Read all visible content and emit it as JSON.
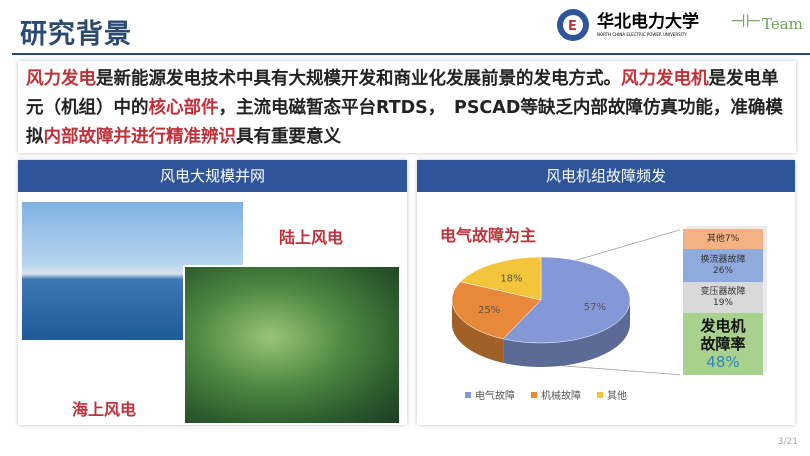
{
  "header": {
    "title": "研究背景",
    "logo_text": "华北电力大学",
    "logo_subtext": "NORTH CHINA ELECTRIC POWER UNIVERSITY",
    "team_logo": "Team"
  },
  "intro": {
    "segments": [
      {
        "text": "风力发电",
        "emph": true
      },
      {
        "text": "是新能源发电技术中具有大规模开发和商业化发展前景的发电方式。",
        "emph": false
      },
      {
        "text": "风力发电机",
        "emph": true
      },
      {
        "text": "是发电单元（机组）中的",
        "emph": false
      },
      {
        "text": "核心部件",
        "emph": true
      },
      {
        "text": "，主流电磁暂态平台RTDS，　PSCAD等缺乏内部故障仿真功能，准确模拟",
        "emph": false
      },
      {
        "text": "内部故障并进行精准辨识",
        "emph": true
      },
      {
        "text": "具有重要意义",
        "emph": false
      }
    ]
  },
  "left_panel": {
    "title": "风电大规模并网",
    "label_onshore": "陆上风电",
    "label_offshore": "海上风电"
  },
  "right_panel": {
    "title": "风电机组故障频发",
    "subtitle": "电气故障为主",
    "breakdown": [
      {
        "label": "其他7%",
        "color": "#f4b183"
      },
      {
        "label": "换流器故障",
        "value": "26%",
        "color": "#8faadc"
      },
      {
        "label": "变压器故障",
        "value": "19%",
        "color": "#d9d9d9"
      },
      {
        "label": "发电机\n故障率",
        "value": "48%",
        "color": "#a9d18e"
      }
    ]
  },
  "chart_data": {
    "type": "pie",
    "categories": [
      "电气故障",
      "机械故障",
      "其他"
    ],
    "values": [
      57,
      25,
      18
    ],
    "labels": [
      "57%",
      "25%",
      "18%"
    ],
    "colors": [
      "#8497d6",
      "#e8893a",
      "#f3c53a"
    ],
    "legend": "bottom"
  },
  "page": "3/21"
}
